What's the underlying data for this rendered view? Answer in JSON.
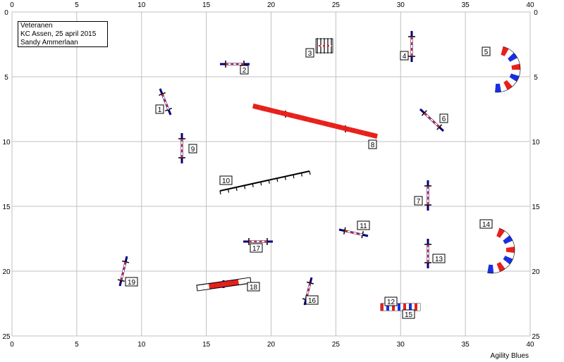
{
  "info": {
    "title": "Veteranen",
    "event": "KC Assen, 25 april 2015",
    "judge": "Sandy Ammerlaan"
  },
  "credit": "Agility Blues",
  "axes": {
    "x_ticks": [
      "0",
      "5",
      "10",
      "15",
      "20",
      "25",
      "30",
      "35",
      "40"
    ],
    "y_ticks": [
      "0",
      "5",
      "10",
      "15",
      "20",
      "25"
    ]
  },
  "colors": {
    "grid": "#c0c0c0",
    "pole": "#000080",
    "red": "#e8201a",
    "blue": "#1a2fe0",
    "white": "#ffffff"
  },
  "obstacles": [
    {
      "number": "1",
      "type": "jump"
    },
    {
      "number": "2",
      "type": "jump"
    },
    {
      "number": "3",
      "type": "weave"
    },
    {
      "number": "4",
      "type": "jump"
    },
    {
      "number": "5",
      "type": "tunnel"
    },
    {
      "number": "6",
      "type": "jump"
    },
    {
      "number": "7",
      "type": "jump"
    },
    {
      "number": "8",
      "type": "dogwalk"
    },
    {
      "number": "9",
      "type": "jump"
    },
    {
      "number": "10",
      "type": "weave-poles"
    },
    {
      "number": "11",
      "type": "jump"
    },
    {
      "number": "12",
      "type": "tire"
    },
    {
      "number": "13",
      "type": "jump"
    },
    {
      "number": "14",
      "type": "tunnel"
    },
    {
      "number": "15",
      "type": "tire"
    },
    {
      "number": "16",
      "type": "jump"
    },
    {
      "number": "17",
      "type": "jump"
    },
    {
      "number": "18",
      "type": "seesaw"
    },
    {
      "number": "19",
      "type": "jump"
    }
  ]
}
